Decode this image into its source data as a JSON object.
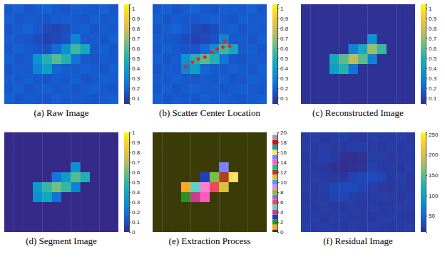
{
  "chart_data": [
    {
      "type": "heatmap",
      "caption": "(a) Raw Image",
      "xlim": [
        0,
        12
      ],
      "ylim": [
        0,
        10
      ],
      "tick_labels": false,
      "clim": [
        0.04,
        1.04
      ],
      "cticks": [
        0.1,
        0.2,
        0.3,
        0.4,
        0.5,
        0.6,
        0.7,
        0.8,
        0.9,
        1
      ],
      "cells": [
        [
          0.16,
          0.18,
          0.15,
          0.17,
          0.19,
          0.16,
          0.15,
          0.18,
          0.17,
          0.16,
          0.19,
          0.15
        ],
        [
          0.18,
          0.15,
          0.17,
          0.16,
          0.15,
          0.17,
          0.18,
          0.16,
          0.15,
          0.18,
          0.16,
          0.17
        ],
        [
          0.15,
          0.17,
          0.19,
          0.16,
          0.12,
          0.11,
          0.13,
          0.17,
          0.18,
          0.15,
          0.17,
          0.16
        ],
        [
          0.17,
          0.16,
          0.15,
          0.13,
          0.1,
          0.12,
          0.14,
          0.3,
          0.16,
          0.17,
          0.15,
          0.18
        ],
        [
          0.16,
          0.18,
          0.16,
          0.15,
          0.14,
          0.22,
          0.35,
          0.55,
          0.45,
          0.16,
          0.18,
          0.15
        ],
        [
          0.18,
          0.15,
          0.17,
          0.35,
          0.5,
          0.6,
          0.5,
          0.25,
          0.16,
          0.15,
          0.17,
          0.16
        ],
        [
          0.15,
          0.17,
          0.16,
          0.3,
          0.4,
          0.2,
          0.17,
          0.16,
          0.18,
          0.17,
          0.15,
          0.18
        ],
        [
          0.17,
          0.16,
          0.18,
          0.16,
          0.15,
          0.17,
          0.16,
          0.18,
          0.15,
          0.16,
          0.18,
          0.17
        ],
        [
          0.16,
          0.18,
          0.15,
          0.17,
          0.18,
          0.16,
          0.17,
          0.15,
          0.17,
          0.18,
          0.16,
          0.15
        ],
        [
          0.18,
          0.15,
          0.17,
          0.16,
          0.15,
          0.18,
          0.16,
          0.17,
          0.16,
          0.15,
          0.17,
          0.18
        ]
      ]
    },
    {
      "type": "heatmap",
      "caption": "(b) Scatter Center Location",
      "xlim": [
        0,
        12
      ],
      "ylim": [
        0,
        10
      ],
      "tick_labels": false,
      "clim": [
        0.04,
        1.04
      ],
      "cticks": [
        0.1,
        0.2,
        0.3,
        0.4,
        0.5,
        0.6,
        0.7,
        0.8,
        0.9,
        1
      ],
      "marker": "circle",
      "color": "#e8231f",
      "scatter_centers": {
        "x": [
          3.5,
          4.2,
          4.8,
          5.5,
          6.2,
          6.8,
          7.4,
          8.1,
          7.6
        ],
        "y": [
          6.3,
          5.8,
          5.5,
          5.3,
          4.8,
          4.5,
          4.3,
          4.2,
          3.7
        ]
      },
      "cells": [
        [
          0.16,
          0.18,
          0.15,
          0.17,
          0.19,
          0.16,
          0.15,
          0.18,
          0.17,
          0.16,
          0.19,
          0.15
        ],
        [
          0.18,
          0.15,
          0.17,
          0.16,
          0.15,
          0.17,
          0.18,
          0.16,
          0.15,
          0.18,
          0.16,
          0.17
        ],
        [
          0.15,
          0.17,
          0.19,
          0.16,
          0.12,
          0.11,
          0.13,
          0.17,
          0.18,
          0.15,
          0.17,
          0.16
        ],
        [
          0.17,
          0.16,
          0.15,
          0.13,
          0.1,
          0.12,
          0.14,
          0.3,
          0.16,
          0.17,
          0.15,
          0.18
        ],
        [
          0.16,
          0.18,
          0.16,
          0.15,
          0.14,
          0.22,
          0.35,
          0.55,
          0.45,
          0.16,
          0.18,
          0.15
        ],
        [
          0.18,
          0.15,
          0.17,
          0.35,
          0.5,
          0.6,
          0.5,
          0.25,
          0.16,
          0.15,
          0.17,
          0.16
        ],
        [
          0.15,
          0.17,
          0.16,
          0.3,
          0.4,
          0.2,
          0.17,
          0.16,
          0.18,
          0.17,
          0.15,
          0.18
        ],
        [
          0.17,
          0.16,
          0.18,
          0.16,
          0.15,
          0.17,
          0.16,
          0.18,
          0.15,
          0.16,
          0.18,
          0.17
        ],
        [
          0.16,
          0.18,
          0.15,
          0.17,
          0.18,
          0.16,
          0.17,
          0.15,
          0.17,
          0.18,
          0.16,
          0.15
        ],
        [
          0.18,
          0.15,
          0.17,
          0.16,
          0.15,
          0.18,
          0.16,
          0.17,
          0.16,
          0.15,
          0.17,
          0.18
        ]
      ]
    },
    {
      "type": "heatmap",
      "caption": "(c) Reconstructed Image",
      "xlim": [
        0,
        12
      ],
      "ylim": [
        0,
        10
      ],
      "tick_labels": false,
      "clim": [
        0.04,
        1.04
      ],
      "cticks": [
        0.1,
        0.2,
        0.3,
        0.4,
        0.5,
        0.6,
        0.7,
        0.8,
        0.9,
        1
      ],
      "cells": [
        [
          0.06,
          0.06,
          0.06,
          0.06,
          0.06,
          0.06,
          0.06,
          0.06,
          0.06,
          0.06,
          0.06,
          0.06
        ],
        [
          0.06,
          0.06,
          0.06,
          0.06,
          0.06,
          0.06,
          0.06,
          0.06,
          0.06,
          0.06,
          0.06,
          0.06
        ],
        [
          0.06,
          0.06,
          0.06,
          0.06,
          0.06,
          0.06,
          0.06,
          0.06,
          0.06,
          0.06,
          0.06,
          0.06
        ],
        [
          0.06,
          0.06,
          0.06,
          0.06,
          0.06,
          0.06,
          0.06,
          0.35,
          0.06,
          0.06,
          0.06,
          0.06
        ],
        [
          0.06,
          0.06,
          0.06,
          0.06,
          0.06,
          0.3,
          0.45,
          0.7,
          0.55,
          0.06,
          0.06,
          0.06
        ],
        [
          0.06,
          0.06,
          0.06,
          0.45,
          0.6,
          0.75,
          0.6,
          0.3,
          0.06,
          0.06,
          0.06,
          0.06
        ],
        [
          0.06,
          0.06,
          0.06,
          0.4,
          0.5,
          0.25,
          0.06,
          0.06,
          0.06,
          0.06,
          0.06,
          0.06
        ],
        [
          0.06,
          0.06,
          0.06,
          0.06,
          0.06,
          0.06,
          0.06,
          0.06,
          0.06,
          0.06,
          0.06,
          0.06
        ],
        [
          0.06,
          0.06,
          0.06,
          0.06,
          0.06,
          0.06,
          0.06,
          0.06,
          0.06,
          0.06,
          0.06,
          0.06
        ],
        [
          0.06,
          0.06,
          0.06,
          0.06,
          0.06,
          0.06,
          0.06,
          0.06,
          0.06,
          0.06,
          0.06,
          0.06
        ]
      ]
    },
    {
      "type": "heatmap",
      "caption": "(d) Segment Image",
      "xlim": [
        0,
        12
      ],
      "ylim": [
        0,
        10
      ],
      "tick_labels": false,
      "clim": [
        0,
        1
      ],
      "cticks": [
        0,
        0.1,
        0.2,
        0.3,
        0.4,
        0.5,
        0.6,
        0.7,
        0.8,
        0.9,
        1
      ],
      "cells": [
        [
          0,
          0,
          0,
          0,
          0,
          0,
          0,
          0,
          0,
          0,
          0,
          0
        ],
        [
          0,
          0,
          0,
          0,
          0,
          0,
          0,
          0,
          0,
          0,
          0,
          0
        ],
        [
          0,
          0,
          0,
          0,
          0,
          0,
          0,
          0,
          0,
          0,
          0,
          0
        ],
        [
          0,
          0,
          0,
          0,
          0,
          0,
          0,
          0.3,
          0,
          0,
          0,
          0
        ],
        [
          0,
          0,
          0,
          0,
          0,
          0.22,
          0.35,
          0.55,
          0.45,
          0,
          0,
          0
        ],
        [
          0,
          0,
          0,
          0.35,
          0.5,
          0.6,
          0.5,
          0.25,
          0,
          0,
          0,
          0
        ],
        [
          0,
          0,
          0,
          0.3,
          0.4,
          0.2,
          0,
          0,
          0,
          0,
          0,
          0
        ],
        [
          0,
          0,
          0,
          0,
          0,
          0,
          0,
          0,
          0,
          0,
          0,
          0
        ],
        [
          0,
          0,
          0,
          0,
          0,
          0,
          0,
          0,
          0,
          0,
          0,
          0
        ],
        [
          0,
          0,
          0,
          0,
          0,
          0,
          0,
          0,
          0,
          0,
          0,
          0
        ]
      ]
    },
    {
      "type": "labelmap",
      "caption": "(e) Extraction Process",
      "xlim": [
        0,
        12
      ],
      "ylim": [
        0,
        10
      ],
      "tick_labels": false,
      "clim": [
        0,
        20
      ],
      "cticks": [
        0,
        2,
        4,
        6,
        8,
        10,
        12,
        14,
        16,
        18,
        20
      ],
      "cells": [
        [
          0,
          0,
          0,
          0,
          0,
          0,
          0,
          0,
          0,
          0,
          0,
          0
        ],
        [
          0,
          0,
          0,
          0,
          0,
          0,
          0,
          0,
          0,
          0,
          0,
          0
        ],
        [
          0,
          0,
          0,
          0,
          0,
          0,
          0,
          0,
          0,
          0,
          0,
          0
        ],
        [
          0,
          0,
          0,
          0,
          0,
          0,
          0,
          15,
          0,
          0,
          0,
          0
        ],
        [
          0,
          0,
          0,
          0,
          0,
          3,
          8,
          12,
          16,
          0,
          0,
          0
        ],
        [
          0,
          0,
          0,
          1,
          5,
          9,
          6,
          11,
          0,
          0,
          0,
          0
        ],
        [
          0,
          0,
          0,
          2,
          4,
          14,
          0,
          0,
          0,
          0,
          0,
          0
        ],
        [
          0,
          0,
          0,
          0,
          0,
          0,
          0,
          0,
          0,
          0,
          0,
          0
        ],
        [
          0,
          0,
          0,
          0,
          0,
          0,
          0,
          0,
          0,
          0,
          0,
          0
        ],
        [
          0,
          0,
          0,
          0,
          0,
          0,
          0,
          0,
          0,
          0,
          0,
          0
        ]
      ]
    },
    {
      "type": "heatmap",
      "caption": "(f) Residual  Image",
      "xlim": [
        0,
        12
      ],
      "ylim": [
        0,
        10
      ],
      "tick_labels": false,
      "clim": [
        10,
        255
      ],
      "cticks": [
        50,
        100,
        150,
        200,
        250
      ],
      "cells": [
        [
          20,
          22,
          19,
          21,
          23,
          20,
          19,
          22,
          21,
          20,
          23,
          19
        ],
        [
          22,
          19,
          21,
          20,
          19,
          21,
          22,
          20,
          19,
          22,
          20,
          21
        ],
        [
          19,
          21,
          23,
          20,
          14,
          13,
          15,
          21,
          22,
          19,
          21,
          20
        ],
        [
          21,
          20,
          19,
          15,
          12,
          14,
          16,
          24,
          20,
          21,
          19,
          22
        ],
        [
          20,
          22,
          20,
          19,
          18,
          26,
          28,
          30,
          27,
          20,
          22,
          19
        ],
        [
          22,
          19,
          21,
          28,
          30,
          29,
          27,
          22,
          20,
          19,
          21,
          20
        ],
        [
          19,
          21,
          20,
          26,
          27,
          22,
          21,
          20,
          22,
          21,
          19,
          22
        ],
        [
          21,
          20,
          22,
          20,
          19,
          21,
          20,
          22,
          19,
          20,
          22,
          21
        ],
        [
          20,
          22,
          19,
          21,
          22,
          20,
          21,
          19,
          21,
          22,
          20,
          19
        ],
        [
          22,
          19,
          21,
          20,
          19,
          22,
          20,
          21,
          20,
          19,
          21,
          22
        ]
      ]
    }
  ]
}
